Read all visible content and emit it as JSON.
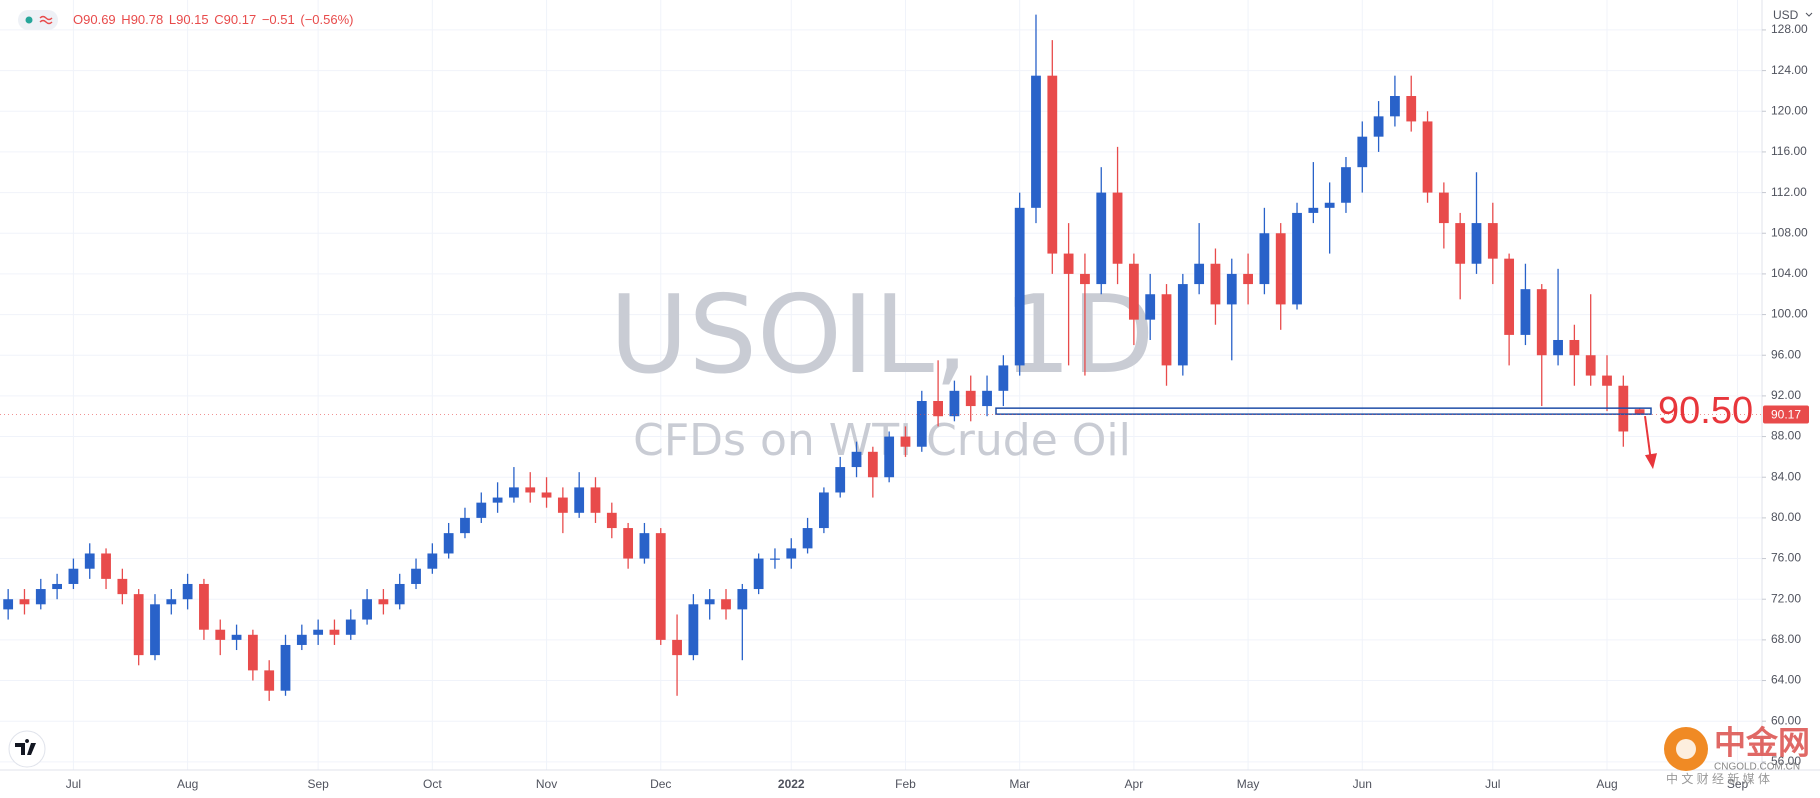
{
  "chart_data": {
    "type": "candlestick",
    "currency": "USD",
    "watermark_title": "USOIL, 1D",
    "watermark_subtitle": "CFDs on WTI Crude Oil",
    "ohlc_prefixes": [
      "O",
      "H",
      "L",
      "C"
    ],
    "change": {
      "value": -0.51,
      "label": "−0.51"
    },
    "change_percent": {
      "value": -0.56,
      "label": "(−0.56%)"
    },
    "support": {
      "value": 90.5,
      "label": "90.50"
    },
    "up_color": "#2962c9",
    "down_color": "#e84b4b",
    "grid": true,
    "categories": [
      null,
      null,
      null,
      null,
      "Jul",
      null,
      null,
      null,
      null,
      null,
      null,
      "Aug",
      null,
      null,
      null,
      null,
      null,
      null,
      null,
      "Sep",
      null,
      null,
      null,
      null,
      null,
      null,
      "Oct",
      null,
      null,
      null,
      null,
      null,
      null,
      "Nov",
      null,
      null,
      null,
      null,
      null,
      null,
      "Dec",
      null,
      null,
      null,
      null,
      null,
      null,
      null,
      "2022",
      null,
      null,
      null,
      null,
      null,
      null,
      "Feb",
      null,
      null,
      null,
      null,
      null,
      null,
      "Mar",
      null,
      null,
      null,
      null,
      null,
      null,
      "Apr",
      null,
      null,
      null,
      null,
      null,
      null,
      "May",
      null,
      null,
      null,
      null,
      null,
      null,
      "Jun",
      null,
      null,
      null,
      null,
      null,
      null,
      null,
      "Jul",
      null,
      null,
      null,
      null,
      null,
      null,
      "Aug",
      null,
      null,
      null,
      null,
      null,
      null,
      null,
      "Sep",
      null
    ],
    "open": [
      71,
      72,
      71.5,
      73,
      73.5,
      75,
      76.5,
      74,
      72.5,
      66.5,
      71.5,
      72,
      73.5,
      69,
      68,
      68.5,
      65,
      63,
      67.5,
      68.5,
      69,
      68.5,
      70,
      72,
      71.5,
      73.5,
      75,
      76.5,
      78.5,
      80,
      81.5,
      82,
      83,
      82.5,
      82,
      80.5,
      83,
      80.5,
      79,
      76,
      78.5,
      68,
      66.5,
      71.5,
      72,
      71,
      73,
      76,
      76,
      77,
      79,
      82.5,
      85,
      86.5,
      84,
      88,
      87,
      91.5,
      90,
      92.5,
      91,
      92.5,
      95,
      110.5,
      123.5,
      106,
      104,
      103,
      112,
      105,
      99.5,
      102,
      95,
      103,
      105,
      101,
      104,
      103,
      108,
      101,
      110,
      110.5,
      111,
      114.5,
      117.5,
      119.5,
      121.5,
      119,
      112,
      109,
      105,
      109,
      105.5,
      98,
      102.5,
      96,
      97.5,
      96,
      94,
      93,
      90.69,
      null,
      null,
      null,
      null,
      null,
      null,
      null
    ],
    "high": [
      73,
      73,
      74,
      74.5,
      76,
      77.5,
      77,
      75,
      73,
      72.5,
      73,
      74.5,
      74,
      70,
      69.5,
      69,
      66,
      68.5,
      69.5,
      70,
      70,
      71,
      73,
      73,
      74.5,
      76,
      77.5,
      79.5,
      81,
      82.5,
      83.5,
      85,
      84.5,
      84,
      83,
      84.5,
      84,
      81.5,
      79.5,
      79.5,
      79,
      70.5,
      72.5,
      73,
      73,
      73.5,
      76.5,
      77,
      78,
      80,
      83,
      86,
      87.5,
      87,
      88.5,
      89,
      92.5,
      95.5,
      93.5,
      94,
      94,
      96,
      112,
      129.5,
      127,
      109,
      106,
      114.5,
      116.5,
      106,
      104,
      103,
      104,
      109,
      106.5,
      105.5,
      106,
      110.5,
      109,
      111,
      115,
      113,
      115.5,
      119,
      121,
      123.5,
      123.5,
      120,
      113,
      110,
      114,
      111,
      106,
      105,
      103,
      104.5,
      99,
      102,
      96,
      94,
      90.78,
      null,
      null,
      null,
      null,
      null,
      null,
      null
    ],
    "low": [
      70,
      70.5,
      71,
      72,
      73,
      74,
      73,
      71.5,
      65.5,
      66,
      70.5,
      71,
      68,
      66.5,
      67,
      64,
      62,
      62.5,
      67,
      67.5,
      67.5,
      68,
      69.5,
      70.5,
      71,
      73,
      74.5,
      76,
      78,
      79.5,
      80.5,
      81.5,
      81.5,
      81,
      78.5,
      80,
      79.5,
      78,
      75,
      75.5,
      67.5,
      62.5,
      66,
      70,
      70,
      66,
      72.5,
      75,
      75,
      76.5,
      78.5,
      82,
      84,
      82,
      83.5,
      86,
      86.5,
      89,
      89.5,
      89.5,
      90,
      91,
      94,
      109,
      104,
      95,
      94,
      102,
      103,
      97,
      97.5,
      93,
      94,
      102,
      99,
      95.5,
      101,
      102,
      98.5,
      100.5,
      109,
      106,
      110,
      112,
      116,
      118.5,
      118,
      111,
      106.5,
      101.5,
      104,
      103,
      95,
      97,
      91,
      95,
      93,
      93,
      90.5,
      87,
      90.15,
      null,
      null,
      null,
      null,
      null,
      null,
      null
    ],
    "close": [
      72,
      71.5,
      73,
      73.5,
      75,
      76.5,
      74,
      72.5,
      66.5,
      71.5,
      72,
      73.5,
      69,
      68,
      68.5,
      65,
      63,
      67.5,
      68.5,
      69,
      68.5,
      70,
      72,
      71.5,
      73.5,
      75,
      76.5,
      78.5,
      80,
      81.5,
      82,
      83,
      82.5,
      82,
      80.5,
      83,
      80.5,
      79,
      76,
      78.5,
      68,
      66.5,
      71.5,
      72,
      71,
      73,
      76,
      76,
      77,
      79,
      82.5,
      85,
      86.5,
      84,
      88,
      87,
      91.5,
      90,
      92.5,
      91,
      92.5,
      95,
      110.5,
      123.5,
      106,
      104,
      103,
      112,
      105,
      99.5,
      102,
      95,
      103,
      105,
      101,
      104,
      103,
      108,
      101,
      110,
      110.5,
      111,
      114.5,
      117.5,
      119.5,
      121.5,
      119,
      112,
      109,
      105,
      109,
      105.5,
      98,
      102.5,
      96,
      97.5,
      96,
      94,
      93,
      88.5,
      90.17,
      null,
      null,
      null,
      null,
      null,
      null,
      null
    ],
    "ylim": [
      55.2,
      130.6
    ],
    "yticks": [
      {
        "value": 56,
        "label": "56.00"
      },
      {
        "value": 60,
        "label": "60.00"
      },
      {
        "value": 64,
        "label": "64.00"
      },
      {
        "value": 68,
        "label": "68.00"
      },
      {
        "value": 72,
        "label": "72.00"
      },
      {
        "value": 76,
        "label": "76.00"
      },
      {
        "value": 80,
        "label": "80.00"
      },
      {
        "value": 84,
        "label": "84.00"
      },
      {
        "value": 88,
        "label": "88.00"
      },
      {
        "value": 92,
        "label": "92.00"
      },
      {
        "value": 96,
        "label": "96.00"
      },
      {
        "value": 100,
        "label": "100.00"
      },
      {
        "value": 104,
        "label": "104.00"
      },
      {
        "value": 108,
        "label": "108.00"
      },
      {
        "value": 112,
        "label": "112.00"
      },
      {
        "value": 116,
        "label": "116.00"
      },
      {
        "value": 120,
        "label": "120.00"
      },
      {
        "value": 124,
        "label": "124.00"
      },
      {
        "value": 128,
        "label": "128.00"
      }
    ]
  },
  "logo": {
    "name": "中金网",
    "domain": "CNGOLD.COM.CN",
    "slogan": "中 文 财 经 新 媒 体"
  }
}
